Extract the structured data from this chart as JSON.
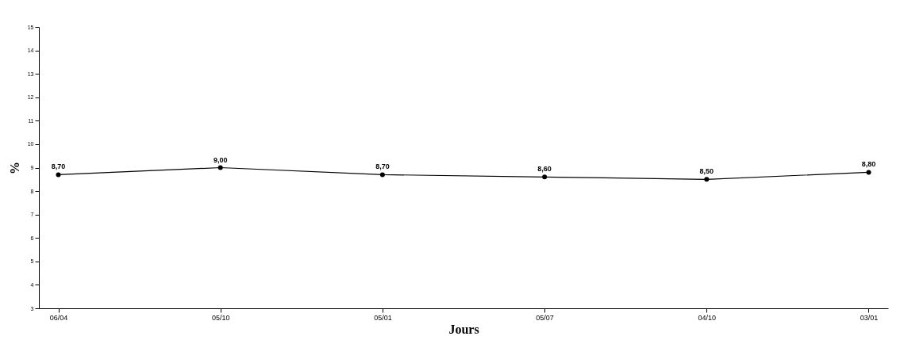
{
  "chart_data": {
    "type": "line",
    "xlabel": "Jours",
    "ylabel": "%",
    "categories": [
      "06/04",
      "05/10",
      "05/01",
      "05/07",
      "04/10",
      "03/01"
    ],
    "series": [
      {
        "color": "#000000",
        "values": [
          8.7,
          9.0,
          8.7,
          8.6,
          8.5,
          8.8
        ],
        "value_labels": [
          "8,70",
          "9,00",
          "8,70",
          "8,60",
          "8,50",
          "8,80"
        ]
      }
    ],
    "ylim": [
      3,
      15
    ],
    "yticks": [
      3,
      4,
      5,
      6,
      7,
      8,
      9,
      10,
      11,
      12,
      13,
      14,
      15
    ],
    "grid": false,
    "marker": "circle",
    "line_style": "solid",
    "legend": false
  }
}
